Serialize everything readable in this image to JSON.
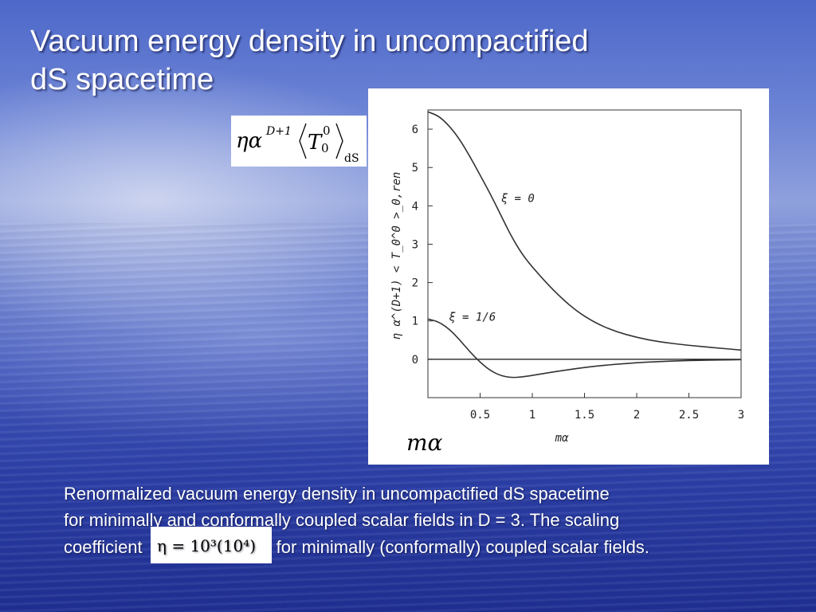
{
  "title": {
    "line1": "Vacuum energy density in uncompactified",
    "line2": "dS spacetime"
  },
  "formula": {
    "prefix": "ηα",
    "exponent": "D+1",
    "T": "T",
    "T_sup": "0",
    "T_sub": "0",
    "subscript": "dS"
  },
  "chart_data": {
    "type": "line",
    "xlabel": "mα",
    "ylabel": "η α^(D+1) < T_0^0 >_0,ren",
    "xlim": [
      0,
      3
    ],
    "ylim": [
      -1,
      6.5
    ],
    "x_ticks": [
      "0.5",
      "1",
      "1.5",
      "2",
      "2.5",
      "3"
    ],
    "y_ticks": [
      "0",
      "1",
      "2",
      "3",
      "4",
      "5",
      "6"
    ],
    "grid": false,
    "series": [
      {
        "name": "ξ = 0",
        "x": [
          0.0,
          0.1,
          0.2,
          0.3,
          0.4,
          0.5,
          0.6,
          0.7,
          0.8,
          0.9,
          1.0,
          1.2,
          1.4,
          1.6,
          1.8,
          2.0,
          2.2,
          2.5,
          2.8,
          3.0
        ],
        "y": [
          6.45,
          6.35,
          6.1,
          5.75,
          5.3,
          4.8,
          4.3,
          3.75,
          3.2,
          2.75,
          2.4,
          1.8,
          1.3,
          0.95,
          0.72,
          0.57,
          0.46,
          0.36,
          0.29,
          0.24
        ]
      },
      {
        "name": "ξ = 1/6",
        "x": [
          0.0,
          0.1,
          0.2,
          0.3,
          0.4,
          0.5,
          0.6,
          0.7,
          0.8,
          0.9,
          1.0,
          1.2,
          1.4,
          1.6,
          1.8,
          2.0,
          2.2,
          2.5,
          2.8,
          3.0
        ],
        "y": [
          1.05,
          0.98,
          0.8,
          0.52,
          0.2,
          -0.08,
          -0.3,
          -0.43,
          -0.48,
          -0.46,
          -0.42,
          -0.33,
          -0.25,
          -0.18,
          -0.13,
          -0.09,
          -0.06,
          -0.03,
          -0.02,
          -0.01
        ]
      }
    ],
    "annotations": [
      "ξ = 0",
      "ξ = 1/6"
    ]
  },
  "ma_label": "mα",
  "caption": {
    "line1": "Renormalized vacuum energy density in uncompactified dS spacetime",
    "line2": "for minimally and conformally coupled scalar fields in D = 3. The scaling",
    "line3_before": "coefficient",
    "eta_formula": "η = 10³(10⁴)",
    "line3_after": "for minimally (conformally) coupled scalar fields."
  },
  "colors": {
    "text": "#ffffff",
    "curve": "#333333",
    "panel": "#ffffff"
  }
}
